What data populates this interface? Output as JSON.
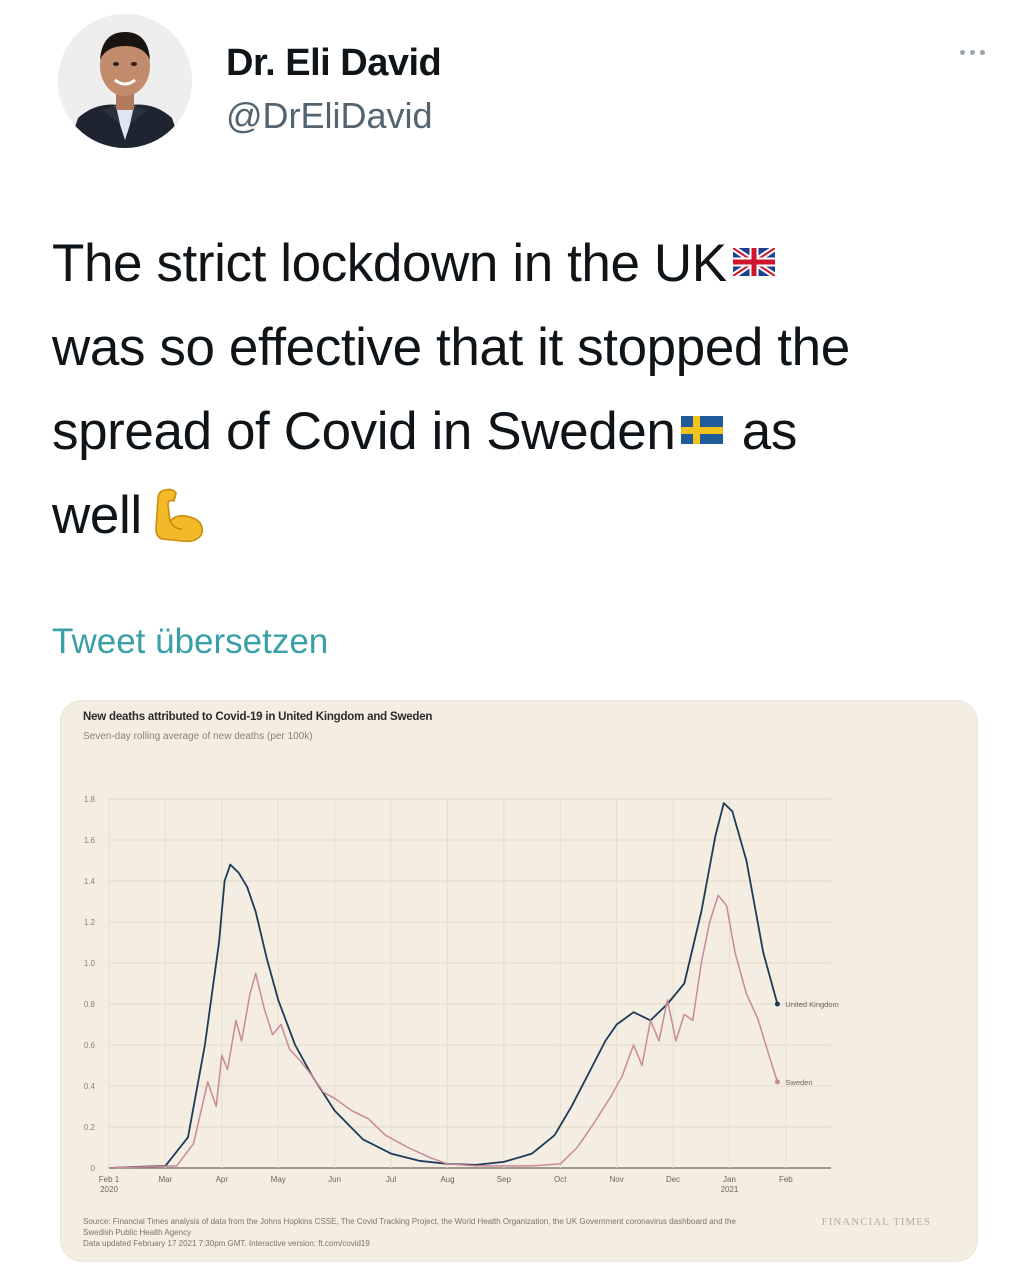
{
  "tweet": {
    "display_name": "Dr. Eli David",
    "handle": "@DrEliDavid",
    "text_line1": "The strict lockdown in the UK",
    "text_line2": "was so effective that it stopped the",
    "text_line3a": "spread of Covid in Sweden",
    "text_line3b": "as",
    "text_line4": "well",
    "translate_label": "Tweet übersetzen",
    "icons": [
      "avatar-photo",
      "more-options-icon",
      "uk-flag-icon",
      "sweden-flag-icon",
      "flexed-biceps-icon"
    ]
  },
  "colors": {
    "uk_line": "#1f3b5a",
    "sweden_line": "#c98a95",
    "card_bg": "#f3ede2",
    "link": "#3aa0a8"
  },
  "chart_data": {
    "type": "line",
    "title": "New deaths attributed to Covid-19 in United Kingdom and Sweden",
    "subtitle": "Seven-day rolling average of new deaths (per 100k)",
    "yticks": [
      "0",
      "0.2",
      "0.4",
      "0.6",
      "0.8",
      "1.0",
      "1.2",
      "1.4",
      "1.6",
      "1.8"
    ],
    "xticks": [
      "Feb 1\n2020",
      "Mar",
      "Apr",
      "May",
      "Jun",
      "Jul",
      "Aug",
      "Sep",
      "Oct",
      "Nov",
      "Dec",
      "Jan\n2021",
      "Feb"
    ],
    "ylim": [
      0,
      1.8
    ],
    "xlim": [
      0,
      12.8
    ],
    "grid": true,
    "legend": "inline-end-labels",
    "series": [
      {
        "name": "United Kingdom",
        "points": [
          [
            0,
            0
          ],
          [
            1.0,
            0.01
          ],
          [
            1.4,
            0.15
          ],
          [
            1.7,
            0.6
          ],
          [
            1.95,
            1.1
          ],
          [
            2.05,
            1.4
          ],
          [
            2.15,
            1.48
          ],
          [
            2.3,
            1.44
          ],
          [
            2.45,
            1.37
          ],
          [
            2.6,
            1.25
          ],
          [
            2.8,
            1.02
          ],
          [
            3.0,
            0.82
          ],
          [
            3.3,
            0.6
          ],
          [
            3.6,
            0.45
          ],
          [
            4.0,
            0.28
          ],
          [
            4.5,
            0.14
          ],
          [
            5.0,
            0.07
          ],
          [
            5.5,
            0.035
          ],
          [
            6.0,
            0.02
          ],
          [
            6.5,
            0.015
          ],
          [
            7.0,
            0.03
          ],
          [
            7.5,
            0.07
          ],
          [
            7.9,
            0.16
          ],
          [
            8.2,
            0.3
          ],
          [
            8.5,
            0.46
          ],
          [
            8.8,
            0.62
          ],
          [
            9.0,
            0.7
          ],
          [
            9.3,
            0.76
          ],
          [
            9.6,
            0.72
          ],
          [
            9.9,
            0.8
          ],
          [
            10.2,
            0.9
          ],
          [
            10.5,
            1.25
          ],
          [
            10.75,
            1.62
          ],
          [
            10.9,
            1.78
          ],
          [
            11.05,
            1.74
          ],
          [
            11.3,
            1.5
          ],
          [
            11.6,
            1.05
          ],
          [
            11.85,
            0.8
          ]
        ]
      },
      {
        "name": "Sweden",
        "points": [
          [
            0,
            0
          ],
          [
            1.2,
            0.01
          ],
          [
            1.5,
            0.12
          ],
          [
            1.75,
            0.42
          ],
          [
            1.9,
            0.3
          ],
          [
            2.0,
            0.55
          ],
          [
            2.1,
            0.48
          ],
          [
            2.25,
            0.72
          ],
          [
            2.35,
            0.62
          ],
          [
            2.5,
            0.85
          ],
          [
            2.6,
            0.95
          ],
          [
            2.75,
            0.78
          ],
          [
            2.9,
            0.65
          ],
          [
            3.05,
            0.7
          ],
          [
            3.2,
            0.58
          ],
          [
            3.4,
            0.52
          ],
          [
            3.6,
            0.45
          ],
          [
            3.8,
            0.37
          ],
          [
            4.0,
            0.34
          ],
          [
            4.3,
            0.28
          ],
          [
            4.6,
            0.24
          ],
          [
            4.9,
            0.16
          ],
          [
            5.3,
            0.1
          ],
          [
            5.7,
            0.05
          ],
          [
            6.0,
            0.02
          ],
          [
            6.5,
            0.01
          ],
          [
            7.0,
            0.01
          ],
          [
            7.5,
            0.01
          ],
          [
            8.0,
            0.02
          ],
          [
            8.3,
            0.1
          ],
          [
            8.6,
            0.22
          ],
          [
            8.9,
            0.35
          ],
          [
            9.1,
            0.45
          ],
          [
            9.3,
            0.6
          ],
          [
            9.45,
            0.5
          ],
          [
            9.6,
            0.72
          ],
          [
            9.75,
            0.62
          ],
          [
            9.9,
            0.82
          ],
          [
            10.05,
            0.62
          ],
          [
            10.2,
            0.75
          ],
          [
            10.35,
            0.72
          ],
          [
            10.5,
            1.0
          ],
          [
            10.65,
            1.2
          ],
          [
            10.8,
            1.33
          ],
          [
            10.95,
            1.28
          ],
          [
            11.1,
            1.05
          ],
          [
            11.3,
            0.85
          ],
          [
            11.5,
            0.73
          ],
          [
            11.7,
            0.55
          ],
          [
            11.85,
            0.42
          ]
        ]
      }
    ],
    "footer_lines": [
      "Source: Financial Times analysis of data from the Johns Hopkins CSSE, The Covid Tracking Project, the World Health Organization, the UK Government coronavirus dashboard and the",
      "Swedish Public Health Agency",
      "Data updated February 17 2021 7:30pm GMT. Interactive version: ft.com/covid19"
    ],
    "brand": "FINANCIAL TIMES"
  }
}
